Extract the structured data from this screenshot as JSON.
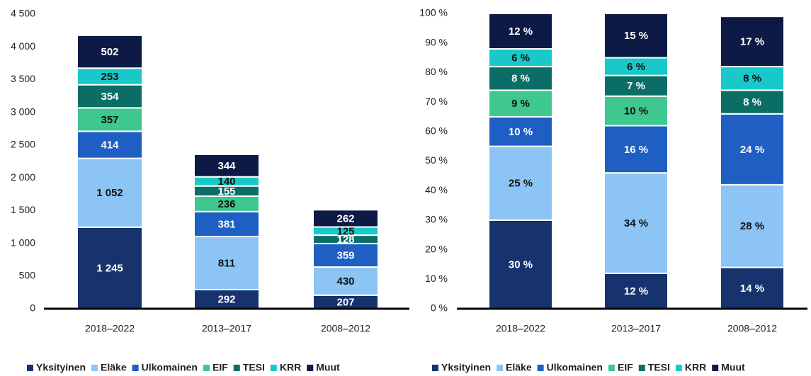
{
  "chart_data": [
    {
      "type": "stacked_bar",
      "categories": [
        "2018–2022",
        "2013–2017",
        "2008–2012"
      ],
      "series": [
        {
          "name": "Yksityinen",
          "color": "#17336e",
          "values": [
            1245,
            292,
            207
          ],
          "value_labels": [
            "1 245",
            "292",
            "207"
          ]
        },
        {
          "name": "Eläke",
          "color": "#8cc4f5",
          "values": [
            1052,
            811,
            430
          ],
          "value_labels": [
            "1 052",
            "811",
            "430"
          ]
        },
        {
          "name": "Ulkomainen",
          "color": "#1f5fc4",
          "values": [
            414,
            381,
            359
          ],
          "value_labels": [
            "414",
            "381",
            "359"
          ]
        },
        {
          "name": "EIF",
          "color": "#3ec78e",
          "values": [
            357,
            236,
            null
          ],
          "value_labels": [
            "357",
            "236",
            null
          ]
        },
        {
          "name": "TESI",
          "color": "#0a6e66",
          "values": [
            354,
            155,
            128
          ],
          "value_labels": [
            "354",
            "155",
            "128"
          ]
        },
        {
          "name": "KRR",
          "color": "#19c9c9",
          "values": [
            253,
            140,
            125
          ],
          "value_labels": [
            "253",
            "140",
            "125"
          ]
        },
        {
          "name": "Muut",
          "color": "#0d1a45",
          "values": [
            502,
            344,
            262
          ],
          "value_labels": [
            "502",
            "344",
            "262"
          ]
        }
      ],
      "ylim": [
        0,
        4500
      ],
      "yticks": [
        0,
        500,
        {
          "value": 1000,
          "label": "1 000"
        },
        {
          "value": 1500,
          "label": "1 500"
        },
        {
          "value": 2000,
          "label": "2 000"
        },
        {
          "value": 2500,
          "label": "2 500"
        },
        {
          "value": 3000,
          "label": "3 000"
        },
        {
          "value": 3500,
          "label": "3 500"
        },
        {
          "value": 4000,
          "label": "4 000"
        },
        {
          "value": 4500,
          "label": "4 500"
        }
      ],
      "grid": false,
      "legend": "bottom"
    },
    {
      "type": "stacked_bar",
      "categories": [
        "2018–2022",
        "2013–2017",
        "2008–2012"
      ],
      "series": [
        {
          "name": "Yksityinen",
          "color": "#17336e",
          "values": [
            30,
            12,
            14
          ],
          "value_labels": [
            "30 %",
            "12 %",
            "14 %"
          ]
        },
        {
          "name": "Eläke",
          "color": "#8cc4f5",
          "values": [
            25,
            34,
            28
          ],
          "value_labels": [
            "25 %",
            "34 %",
            "28 %"
          ]
        },
        {
          "name": "Ulkomainen",
          "color": "#1f5fc4",
          "values": [
            10,
            16,
            24
          ],
          "value_labels": [
            "10 %",
            "16 %",
            "24 %"
          ]
        },
        {
          "name": "EIF",
          "color": "#3ec78e",
          "values": [
            9,
            10,
            null
          ],
          "value_labels": [
            "9 %",
            "10 %",
            null
          ]
        },
        {
          "name": "TESI",
          "color": "#0a6e66",
          "values": [
            8,
            7,
            8
          ],
          "value_labels": [
            "8 %",
            "7 %",
            "8 %"
          ]
        },
        {
          "name": "KRR",
          "color": "#19c9c9",
          "values": [
            6,
            6,
            8
          ],
          "value_labels": [
            "6 %",
            "6 %",
            "8 %"
          ]
        },
        {
          "name": "Muut",
          "color": "#0d1a45",
          "values": [
            12,
            15,
            17
          ],
          "value_labels": [
            "12 %",
            "15 %",
            "17 %"
          ]
        }
      ],
      "ylim": [
        0,
        100
      ],
      "yticks": [
        {
          "value": 0,
          "label": "0 %"
        },
        {
          "value": 10,
          "label": "10 %"
        },
        {
          "value": 20,
          "label": "20 %"
        },
        {
          "value": 30,
          "label": "30 %"
        },
        {
          "value": 40,
          "label": "40 %"
        },
        {
          "value": 50,
          "label": "50 %"
        },
        {
          "value": 60,
          "label": "60 %"
        },
        {
          "value": 70,
          "label": "70 %"
        },
        {
          "value": 80,
          "label": "80 %"
        },
        {
          "value": 90,
          "label": "90 %"
        },
        {
          "value": 100,
          "label": "100 %"
        }
      ],
      "grid": false,
      "legend": "bottom"
    }
  ]
}
